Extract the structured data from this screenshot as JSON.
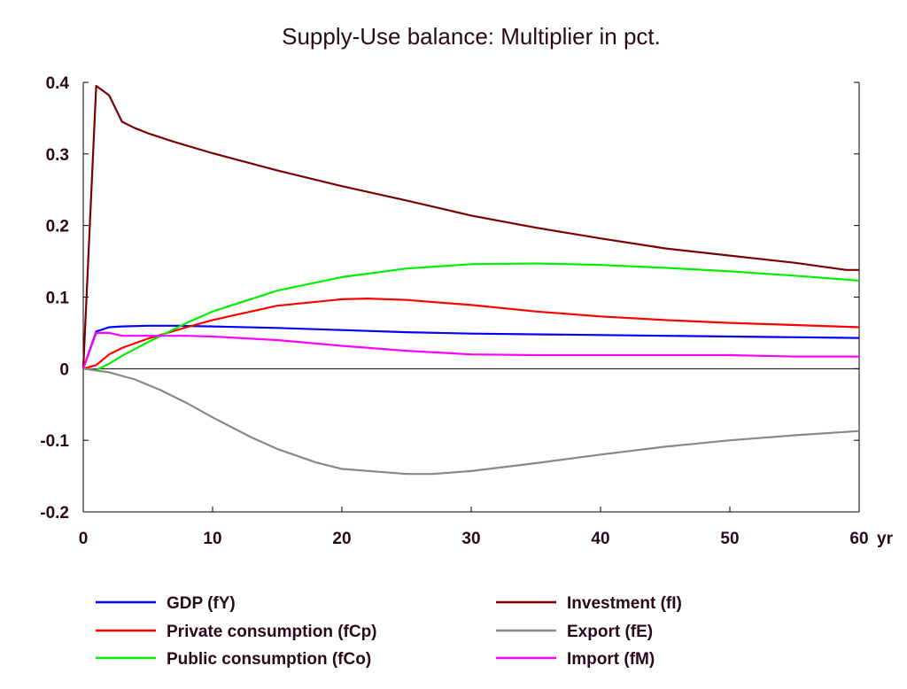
{
  "chart_data": {
    "type": "line",
    "title": "Supply-Use balance: Multiplier in pct.",
    "xlabel": "",
    "ylabel": "",
    "x_unit_label": "yr",
    "xlim": [
      0,
      60
    ],
    "ylim": [
      -0.2,
      0.4
    ],
    "x_ticks": [
      "0",
      "10",
      "20",
      "30",
      "40",
      "50",
      "60"
    ],
    "y_ticks": [
      "0.4",
      "0.3",
      "0.2",
      "0.1",
      "0",
      "-0.1",
      "-0.2"
    ],
    "zero_line": true,
    "grid": false,
    "legend_position": "bottom",
    "series": [
      {
        "name": "GDP (fY)",
        "color": "#0000ff",
        "x": [
          0,
          1,
          2,
          3,
          5,
          7,
          10,
          15,
          20,
          25,
          30,
          40,
          50,
          60
        ],
        "y": [
          0,
          0.052,
          0.058,
          0.059,
          0.06,
          0.06,
          0.059,
          0.057,
          0.054,
          0.051,
          0.049,
          0.047,
          0.045,
          0.043
        ]
      },
      {
        "name": "Private consumption (fCp)",
        "color": "#ff0000",
        "x": [
          0,
          1,
          2,
          3,
          5,
          8,
          10,
          15,
          20,
          22,
          25,
          30,
          35,
          40,
          45,
          50,
          55,
          60
        ],
        "y": [
          0,
          0.005,
          0.02,
          0.029,
          0.042,
          0.058,
          0.068,
          0.088,
          0.097,
          0.098,
          0.096,
          0.089,
          0.08,
          0.073,
          0.068,
          0.064,
          0.061,
          0.058
        ]
      },
      {
        "name": "Public consumption (fCo)",
        "color": "#00ee00",
        "x": [
          0,
          1,
          2,
          3,
          5,
          8,
          10,
          15,
          20,
          25,
          30,
          35,
          40,
          45,
          50,
          55,
          60
        ],
        "y": [
          0,
          -0.002,
          0.007,
          0.018,
          0.037,
          0.064,
          0.08,
          0.109,
          0.128,
          0.14,
          0.146,
          0.147,
          0.145,
          0.141,
          0.136,
          0.13,
          0.123
        ]
      },
      {
        "name": "Investment (fI)",
        "color": "#7a0000",
        "x": [
          0,
          1,
          2,
          3,
          4,
          5,
          7,
          10,
          15,
          20,
          25,
          30,
          35,
          40,
          45,
          50,
          55,
          59,
          60
        ],
        "y": [
          0,
          0.395,
          0.382,
          0.345,
          0.336,
          0.329,
          0.317,
          0.301,
          0.277,
          0.255,
          0.235,
          0.214,
          0.197,
          0.182,
          0.168,
          0.158,
          0.148,
          0.138,
          0.138
        ]
      },
      {
        "name": "Export (fE)",
        "color": "#888888",
        "x": [
          0,
          2,
          4,
          6,
          8,
          10,
          13,
          15,
          18,
          20,
          25,
          27,
          30,
          35,
          40,
          45,
          50,
          55,
          60
        ],
        "y": [
          0,
          -0.005,
          -0.015,
          -0.03,
          -0.048,
          -0.068,
          -0.096,
          -0.112,
          -0.131,
          -0.14,
          -0.147,
          -0.147,
          -0.143,
          -0.132,
          -0.12,
          -0.109,
          -0.1,
          -0.093,
          -0.087
        ]
      },
      {
        "name": "Import (fM)",
        "color": "#ff00ff",
        "x": [
          0,
          1,
          2,
          3,
          5,
          8,
          10,
          15,
          20,
          25,
          30,
          35,
          40,
          50,
          55,
          60
        ],
        "y": [
          0,
          0.05,
          0.05,
          0.046,
          0.046,
          0.046,
          0.045,
          0.04,
          0.032,
          0.025,
          0.02,
          0.019,
          0.019,
          0.019,
          0.017,
          0.017
        ]
      }
    ]
  }
}
